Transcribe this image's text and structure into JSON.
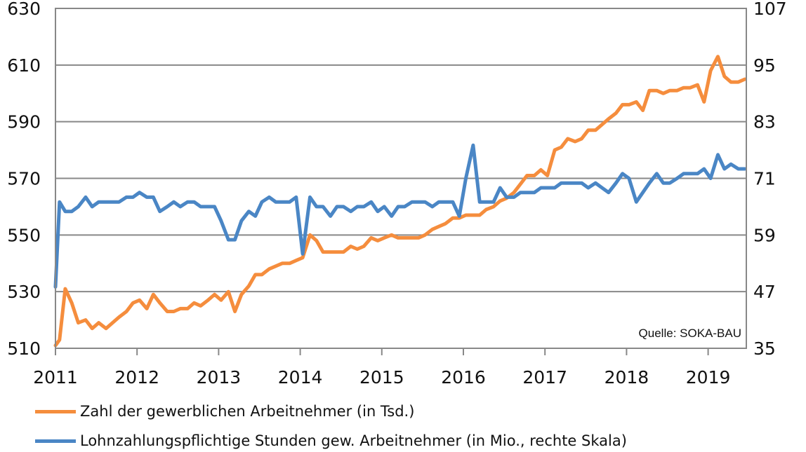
{
  "chart_data": {
    "type": "line",
    "title": "",
    "source_note": "Quelle: SOKA-BAU",
    "x_labels": [
      "2011",
      "2012",
      "2013",
      "2014",
      "2015",
      "2016",
      "2017",
      "2018",
      "2019"
    ],
    "y_left": {
      "ticks": [
        "630",
        "610",
        "590",
        "570",
        "550",
        "530",
        "510"
      ],
      "lim": [
        510,
        630
      ]
    },
    "y_right": {
      "ticks": [
        "107",
        "95",
        "83",
        "71",
        "59",
        "47",
        "35"
      ],
      "lim": [
        35,
        107
      ]
    },
    "grid": true,
    "legend_position": "bottom",
    "colors": {
      "orange": "#f58d3d",
      "blue": "#4a86c5",
      "grid": "#888888"
    },
    "series": [
      {
        "name": "Zahl der gewerblichen Arbeitnehmer (in Tsd.)",
        "axis": "left",
        "color": "#f58d3d",
        "values": [
          [
            2011.0,
            511
          ],
          [
            2011.05,
            513
          ],
          [
            2011.12,
            531
          ],
          [
            2011.2,
            526
          ],
          [
            2011.28,
            519
          ],
          [
            2011.37,
            520
          ],
          [
            2011.45,
            517
          ],
          [
            2011.53,
            519
          ],
          [
            2011.62,
            517
          ],
          [
            2011.7,
            519
          ],
          [
            2011.78,
            521
          ],
          [
            2011.87,
            523
          ],
          [
            2011.95,
            526
          ],
          [
            2012.03,
            527
          ],
          [
            2012.12,
            524
          ],
          [
            2012.2,
            529
          ],
          [
            2012.28,
            526
          ],
          [
            2012.37,
            523
          ],
          [
            2012.45,
            523
          ],
          [
            2012.53,
            524
          ],
          [
            2012.62,
            524
          ],
          [
            2012.7,
            526
          ],
          [
            2012.78,
            525
          ],
          [
            2012.87,
            527
          ],
          [
            2012.95,
            529
          ],
          [
            2013.03,
            527
          ],
          [
            2013.12,
            530
          ],
          [
            2013.2,
            523
          ],
          [
            2013.28,
            529
          ],
          [
            2013.37,
            532
          ],
          [
            2013.45,
            536
          ],
          [
            2013.53,
            536
          ],
          [
            2013.62,
            538
          ],
          [
            2013.7,
            539
          ],
          [
            2013.78,
            540
          ],
          [
            2013.87,
            540
          ],
          [
            2013.95,
            541
          ],
          [
            2014.03,
            542
          ],
          [
            2014.12,
            550
          ],
          [
            2014.2,
            548
          ],
          [
            2014.28,
            544
          ],
          [
            2014.37,
            544
          ],
          [
            2014.45,
            544
          ],
          [
            2014.53,
            544
          ],
          [
            2014.62,
            546
          ],
          [
            2014.7,
            545
          ],
          [
            2014.78,
            546
          ],
          [
            2014.87,
            549
          ],
          [
            2014.95,
            548
          ],
          [
            2015.03,
            549
          ],
          [
            2015.12,
            550
          ],
          [
            2015.2,
            549
          ],
          [
            2015.28,
            549
          ],
          [
            2015.37,
            549
          ],
          [
            2015.45,
            549
          ],
          [
            2015.53,
            550
          ],
          [
            2015.62,
            552
          ],
          [
            2015.7,
            553
          ],
          [
            2015.78,
            554
          ],
          [
            2015.87,
            556
          ],
          [
            2015.95,
            556
          ],
          [
            2016.03,
            557
          ],
          [
            2016.12,
            557
          ],
          [
            2016.2,
            557
          ],
          [
            2016.28,
            559
          ],
          [
            2016.37,
            560
          ],
          [
            2016.45,
            562
          ],
          [
            2016.53,
            563
          ],
          [
            2016.62,
            565
          ],
          [
            2016.7,
            568
          ],
          [
            2016.78,
            571
          ],
          [
            2016.87,
            571
          ],
          [
            2016.95,
            573
          ],
          [
            2017.03,
            571
          ],
          [
            2017.12,
            580
          ],
          [
            2017.2,
            581
          ],
          [
            2017.28,
            584
          ],
          [
            2017.37,
            583
          ],
          [
            2017.45,
            584
          ],
          [
            2017.53,
            587
          ],
          [
            2017.62,
            587
          ],
          [
            2017.7,
            589
          ],
          [
            2017.78,
            591
          ],
          [
            2017.87,
            593
          ],
          [
            2017.95,
            596
          ],
          [
            2018.03,
            596
          ],
          [
            2018.12,
            597
          ],
          [
            2018.2,
            594
          ],
          [
            2018.28,
            601
          ],
          [
            2018.37,
            601
          ],
          [
            2018.45,
            600
          ],
          [
            2018.53,
            601
          ],
          [
            2018.62,
            601
          ],
          [
            2018.7,
            602
          ],
          [
            2018.78,
            602
          ],
          [
            2018.87,
            603
          ],
          [
            2018.95,
            597
          ],
          [
            2019.03,
            608
          ],
          [
            2019.12,
            613
          ],
          [
            2019.2,
            606
          ],
          [
            2019.28,
            604
          ],
          [
            2019.37,
            604
          ],
          [
            2019.45,
            605
          ]
        ]
      },
      {
        "name": "Lohnzahlungspflichtige Stunden gew. Arbeitnehmer (in Mio., rechte Skala)",
        "axis": "right",
        "color": "#4a86c5",
        "values": [
          [
            2011.0,
            48
          ],
          [
            2011.05,
            66
          ],
          [
            2011.12,
            64
          ],
          [
            2011.2,
            64
          ],
          [
            2011.28,
            65
          ],
          [
            2011.37,
            67
          ],
          [
            2011.45,
            65
          ],
          [
            2011.53,
            66
          ],
          [
            2011.62,
            66
          ],
          [
            2011.7,
            66
          ],
          [
            2011.78,
            66
          ],
          [
            2011.87,
            67
          ],
          [
            2011.95,
            67
          ],
          [
            2012.03,
            68
          ],
          [
            2012.12,
            67
          ],
          [
            2012.2,
            67
          ],
          [
            2012.28,
            64
          ],
          [
            2012.37,
            65
          ],
          [
            2012.45,
            66
          ],
          [
            2012.53,
            65
          ],
          [
            2012.62,
            66
          ],
          [
            2012.7,
            66
          ],
          [
            2012.78,
            65
          ],
          [
            2012.87,
            65
          ],
          [
            2012.95,
            65
          ],
          [
            2013.03,
            62
          ],
          [
            2013.12,
            58
          ],
          [
            2013.2,
            58
          ],
          [
            2013.28,
            62
          ],
          [
            2013.37,
            64
          ],
          [
            2013.45,
            63
          ],
          [
            2013.53,
            66
          ],
          [
            2013.62,
            67
          ],
          [
            2013.7,
            66
          ],
          [
            2013.78,
            66
          ],
          [
            2013.87,
            66
          ],
          [
            2013.95,
            67
          ],
          [
            2014.03,
            55
          ],
          [
            2014.12,
            67
          ],
          [
            2014.2,
            65
          ],
          [
            2014.28,
            65
          ],
          [
            2014.37,
            63
          ],
          [
            2014.45,
            65
          ],
          [
            2014.53,
            65
          ],
          [
            2014.62,
            64
          ],
          [
            2014.7,
            65
          ],
          [
            2014.78,
            65
          ],
          [
            2014.87,
            66
          ],
          [
            2014.95,
            64
          ],
          [
            2015.03,
            65
          ],
          [
            2015.12,
            63
          ],
          [
            2015.2,
            65
          ],
          [
            2015.28,
            65
          ],
          [
            2015.37,
            66
          ],
          [
            2015.45,
            66
          ],
          [
            2015.53,
            66
          ],
          [
            2015.62,
            65
          ],
          [
            2015.7,
            66
          ],
          [
            2015.78,
            66
          ],
          [
            2015.87,
            66
          ],
          [
            2015.95,
            63
          ],
          [
            2016.03,
            71
          ],
          [
            2016.12,
            78
          ],
          [
            2016.2,
            66
          ],
          [
            2016.28,
            66
          ],
          [
            2016.37,
            66
          ],
          [
            2016.45,
            69
          ],
          [
            2016.53,
            67
          ],
          [
            2016.62,
            67
          ],
          [
            2016.7,
            68
          ],
          [
            2016.78,
            68
          ],
          [
            2016.87,
            68
          ],
          [
            2016.95,
            69
          ],
          [
            2017.03,
            69
          ],
          [
            2017.12,
            69
          ],
          [
            2017.2,
            70
          ],
          [
            2017.28,
            70
          ],
          [
            2017.37,
            70
          ],
          [
            2017.45,
            70
          ],
          [
            2017.53,
            69
          ],
          [
            2017.62,
            70
          ],
          [
            2017.7,
            69
          ],
          [
            2017.78,
            68
          ],
          [
            2017.87,
            70
          ],
          [
            2017.95,
            72
          ],
          [
            2018.03,
            71
          ],
          [
            2018.12,
            66
          ],
          [
            2018.2,
            68
          ],
          [
            2018.28,
            70
          ],
          [
            2018.37,
            72
          ],
          [
            2018.45,
            70
          ],
          [
            2018.53,
            70
          ],
          [
            2018.62,
            71
          ],
          [
            2018.7,
            72
          ],
          [
            2018.78,
            72
          ],
          [
            2018.87,
            72
          ],
          [
            2018.95,
            73
          ],
          [
            2019.03,
            71
          ],
          [
            2019.12,
            76
          ],
          [
            2019.2,
            73
          ],
          [
            2019.28,
            74
          ],
          [
            2019.37,
            73
          ],
          [
            2019.45,
            73
          ]
        ]
      }
    ]
  }
}
